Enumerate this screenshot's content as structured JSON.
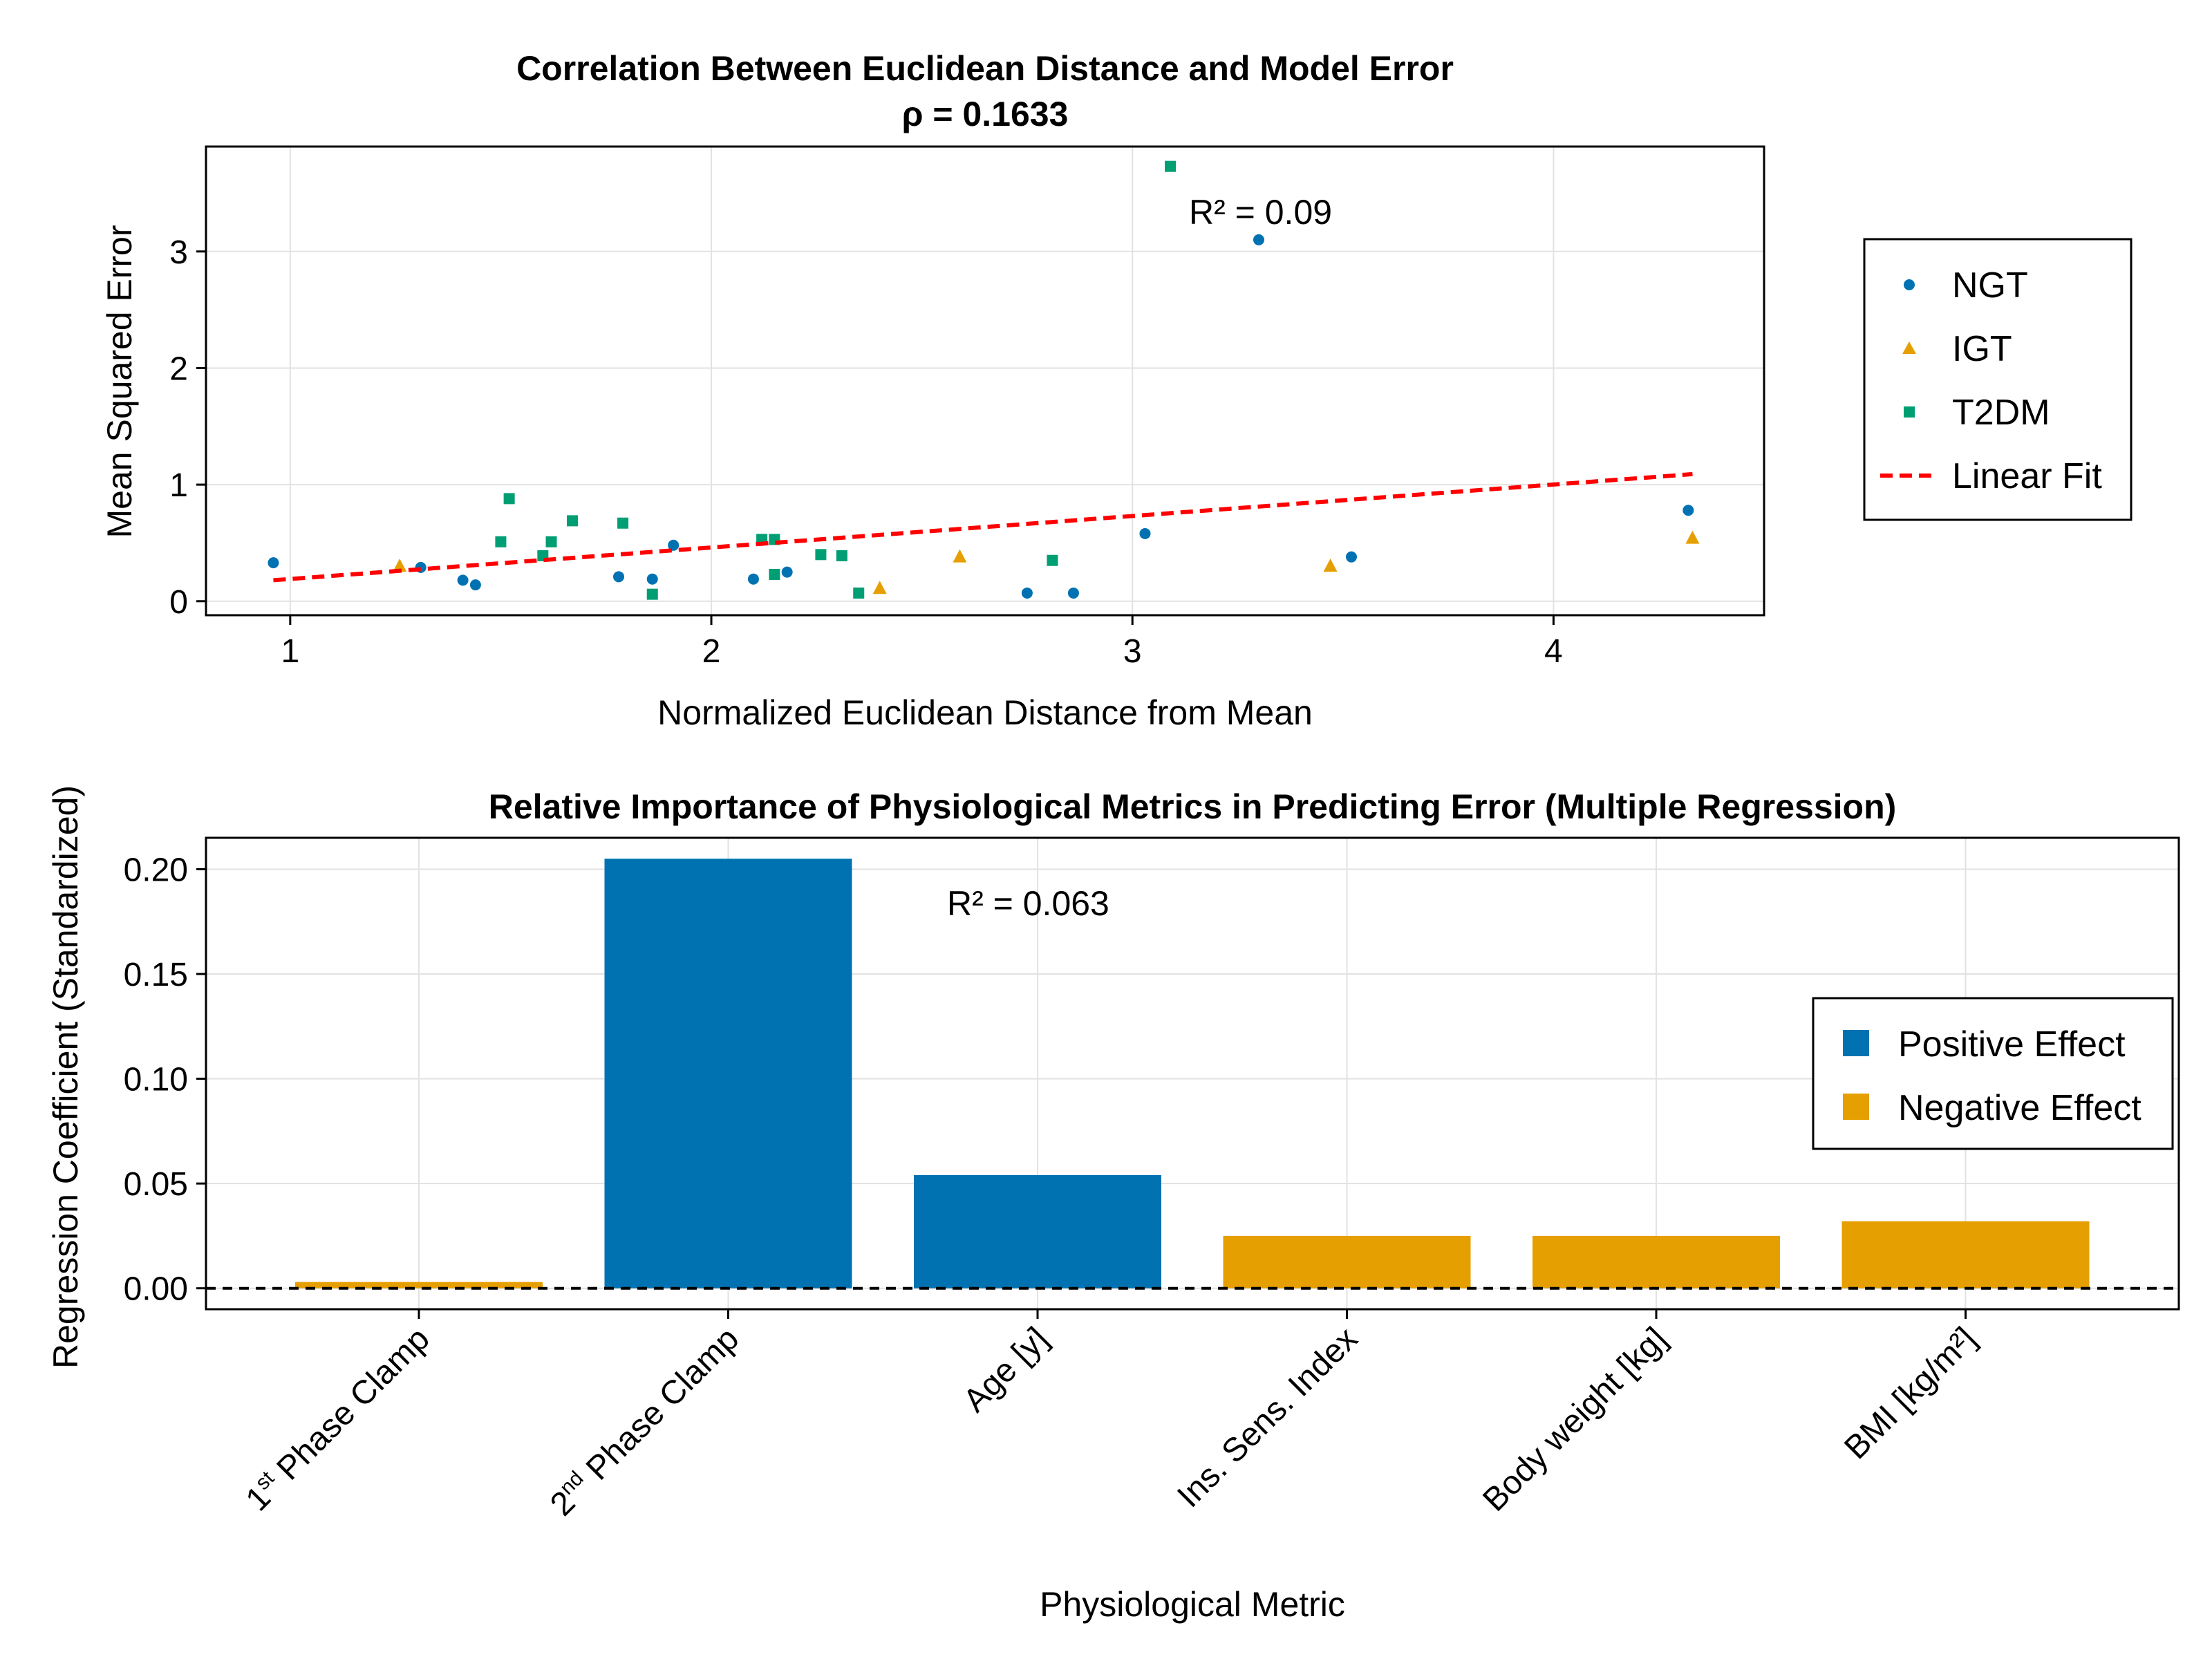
{
  "chart_data": [
    {
      "type": "scatter",
      "title": "Correlation Between Euclidean Distance and Model Error",
      "subtitle": "ρ = 0.1633",
      "xlabel": "Normalized Euclidean Distance from Mean",
      "ylabel": "Mean Squared Error",
      "xlim": [
        0.8,
        4.5
      ],
      "ylim": [
        -0.12,
        3.9
      ],
      "xticks": [
        1,
        2,
        3,
        4
      ],
      "yticks": [
        0,
        1,
        2,
        3
      ],
      "grid": true,
      "legend_position": "right",
      "annotation": "R² = 0.09",
      "colors": {
        "NGT": "#0072b2",
        "IGT": "#e69f00",
        "T2DM": "#009e73",
        "fit": "#ff0000"
      },
      "series": [
        {
          "name": "NGT",
          "marker": "circle",
          "points": [
            [
              0.96,
              0.33
            ],
            [
              1.31,
              0.29
            ],
            [
              1.41,
              0.18
            ],
            [
              1.44,
              0.14
            ],
            [
              1.78,
              0.21
            ],
            [
              1.86,
              0.19
            ],
            [
              1.91,
              0.48
            ],
            [
              2.1,
              0.19
            ],
            [
              2.18,
              0.25
            ],
            [
              2.75,
              0.07
            ],
            [
              2.86,
              0.07
            ],
            [
              3.03,
              0.58
            ],
            [
              3.3,
              3.1
            ],
            [
              3.52,
              0.38
            ],
            [
              4.32,
              0.78
            ]
          ]
        },
        {
          "name": "IGT",
          "marker": "triangle",
          "points": [
            [
              1.26,
              0.3
            ],
            [
              2.4,
              0.11
            ],
            [
              2.59,
              0.38
            ],
            [
              3.47,
              0.3
            ],
            [
              4.33,
              0.54
            ]
          ]
        },
        {
          "name": "T2DM",
          "marker": "square",
          "points": [
            [
              1.5,
              0.51
            ],
            [
              1.52,
              0.88
            ],
            [
              1.6,
              0.39
            ],
            [
              1.62,
              0.51
            ],
            [
              1.67,
              0.69
            ],
            [
              1.79,
              0.67
            ],
            [
              1.86,
              0.06
            ],
            [
              2.12,
              0.53
            ],
            [
              2.15,
              0.53
            ],
            [
              2.15,
              0.23
            ],
            [
              2.26,
              0.4
            ],
            [
              2.31,
              0.39
            ],
            [
              2.35,
              0.07
            ],
            [
              2.81,
              0.35
            ],
            [
              3.09,
              3.73
            ]
          ]
        },
        {
          "name": "Linear Fit",
          "style": "dashed",
          "points": [
            [
              0.96,
              0.18
            ],
            [
              4.33,
              1.09
            ]
          ]
        }
      ]
    },
    {
      "type": "bar",
      "title": "Relative Importance of Physiological Metrics in Predicting Error (Multiple Regression)",
      "xlabel": "Physiological Metric",
      "ylabel": "Regression Coefficient (Standardized)",
      "ylim": [
        -0.01,
        0.215
      ],
      "yticks": [
        0.0,
        0.05,
        0.1,
        0.15,
        0.2
      ],
      "ytick_labels": [
        "0.00",
        "0.05",
        "0.10",
        "0.15",
        "0.20"
      ],
      "grid": true,
      "legend_position": "right",
      "annotation": "R² = 0.063",
      "categories": [
        {
          "base": "1",
          "sup": "st",
          "rest": " Phase Clamp"
        },
        {
          "base": "2",
          "sup": "nd",
          "rest": " Phase Clamp"
        },
        {
          "base": "Age [y]",
          "sup": "",
          "rest": ""
        },
        {
          "base": "Ins. Sens. Index",
          "sup": "",
          "rest": ""
        },
        {
          "base": "Body weight [kg]",
          "sup": "",
          "rest": ""
        },
        {
          "base": "BMI [kg/m²]",
          "sup": "",
          "rest": ""
        }
      ],
      "values": [
        0.003,
        0.205,
        0.054,
        0.025,
        0.025,
        0.032
      ],
      "effect": [
        "Negative Effect",
        "Positive Effect",
        "Positive Effect",
        "Negative Effect",
        "Negative Effect",
        "Negative Effect"
      ],
      "legend": [
        "Positive Effect",
        "Negative Effect"
      ],
      "colors": {
        "Positive Effect": "#0072b2",
        "Negative Effect": "#e69f00"
      }
    }
  ]
}
